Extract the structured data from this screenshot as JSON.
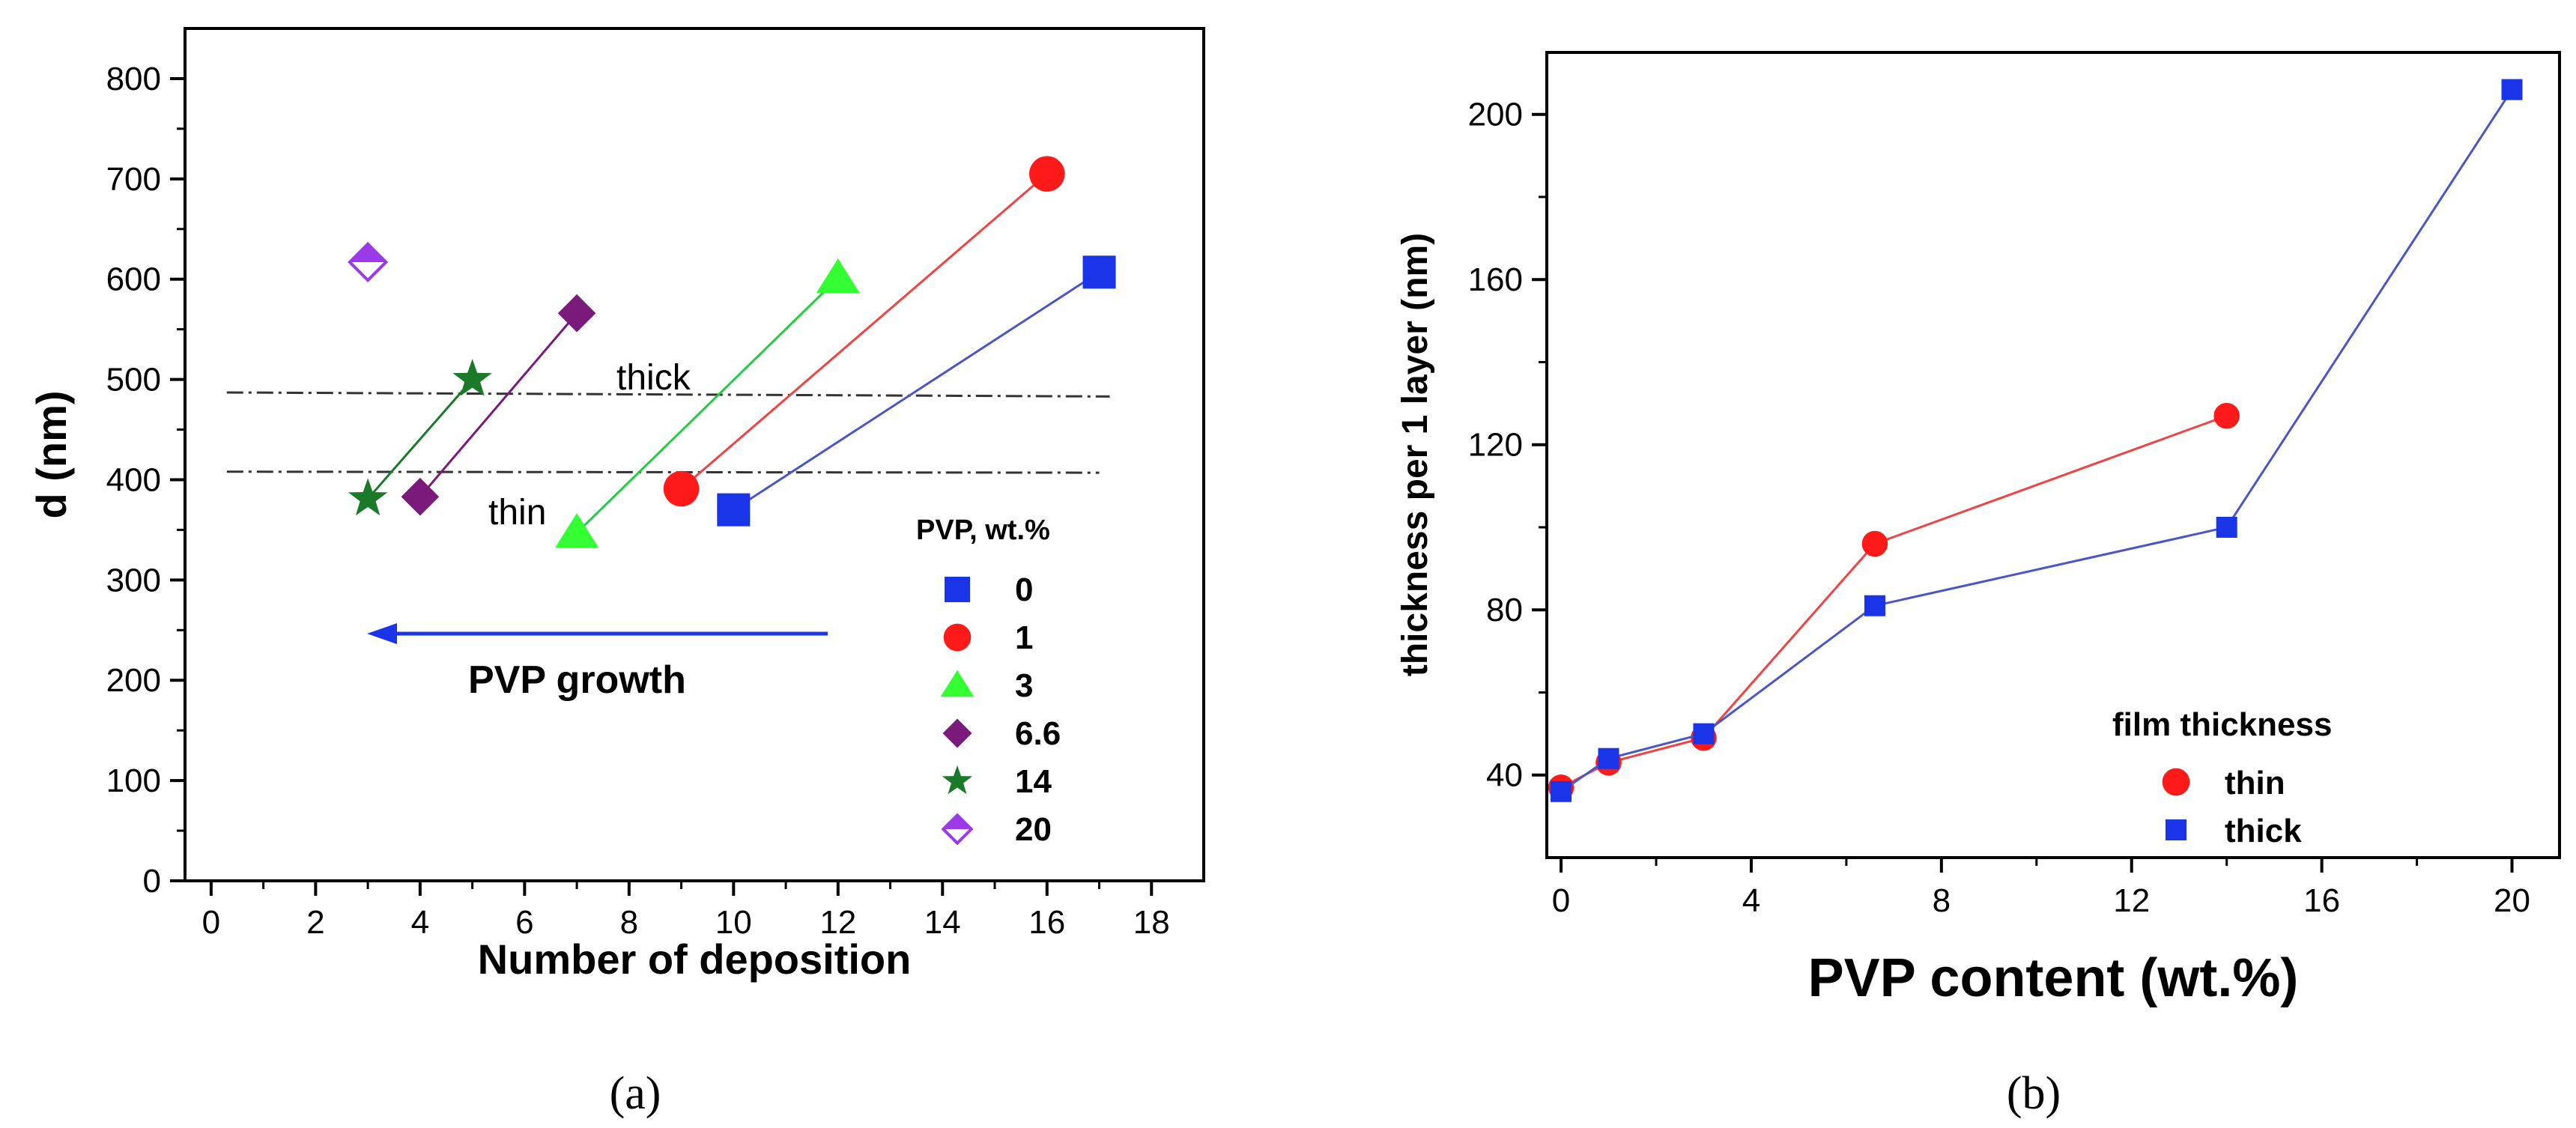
{
  "colors": {
    "blue": "#1a35e8",
    "red": "#ff1a1a",
    "green": "#33ff33",
    "purple": "#7a1a7a",
    "darkgreen": "#1a7a2a",
    "violet": "#9a3ae8",
    "blue_line": "#4a56c8",
    "red_line": "#ee4444",
    "green_line": "#22cc44"
  },
  "panel_a": {
    "caption": "(a)",
    "annotations": {
      "thick": "thick",
      "thin": "thin",
      "arrow": "PVP growth"
    },
    "reference_lines": [
      485,
      408
    ]
  },
  "panel_b": {
    "caption": "(b)"
  },
  "chart_data": [
    {
      "type": "scatter",
      "xlabel": "Number of deposition",
      "ylabel": "d (nm)",
      "xlim": [
        -0.5,
        19
      ],
      "ylim": [
        0,
        850
      ],
      "xticks": [
        "0",
        "2",
        "4",
        "6",
        "8",
        "10",
        "12",
        "14",
        "16",
        "18"
      ],
      "yticks": [
        "0",
        "100",
        "200",
        "300",
        "400",
        "500",
        "600",
        "700",
        "800"
      ],
      "legend_title": "PVP, wt.%",
      "legend_position": "bottom-right",
      "series": [
        {
          "name": "0",
          "marker": "square",
          "x": [
            10,
            17
          ],
          "y": [
            370,
            607
          ]
        },
        {
          "name": "1",
          "marker": "circle",
          "x": [
            9,
            16
          ],
          "y": [
            391,
            705
          ]
        },
        {
          "name": "3",
          "marker": "triangle",
          "x": [
            7,
            12
          ],
          "y": [
            347,
            601
          ]
        },
        {
          "name": "6.6",
          "marker": "diamond",
          "x": [
            4,
            7
          ],
          "y": [
            383,
            566
          ]
        },
        {
          "name": "14",
          "marker": "star",
          "x": [
            3,
            5
          ],
          "y": [
            381,
            500
          ]
        },
        {
          "name": "20",
          "marker": "half-diamond",
          "x": [
            3
          ],
          "y": [
            617
          ]
        }
      ]
    },
    {
      "type": "line",
      "xlabel": "PVP content (wt.%)",
      "ylabel": "thickness per 1 layer (nm)",
      "xlim": [
        -0.3,
        21
      ],
      "ylim": [
        20,
        215
      ],
      "xticks": [
        "0",
        "4",
        "8",
        "12",
        "16",
        "20"
      ],
      "yticks": [
        "40",
        "80",
        "120",
        "160",
        "200"
      ],
      "legend_title": "film thickness",
      "legend_position": "bottom-right",
      "series": [
        {
          "name": "thin",
          "marker": "circle",
          "x": [
            0,
            1,
            3,
            6.6,
            14
          ],
          "y": [
            37,
            43,
            49,
            96,
            127
          ]
        },
        {
          "name": "thick",
          "marker": "square",
          "x": [
            0,
            1,
            3,
            6.6,
            14,
            20
          ],
          "y": [
            36,
            44,
            50,
            81,
            100,
            206
          ]
        }
      ]
    }
  ]
}
